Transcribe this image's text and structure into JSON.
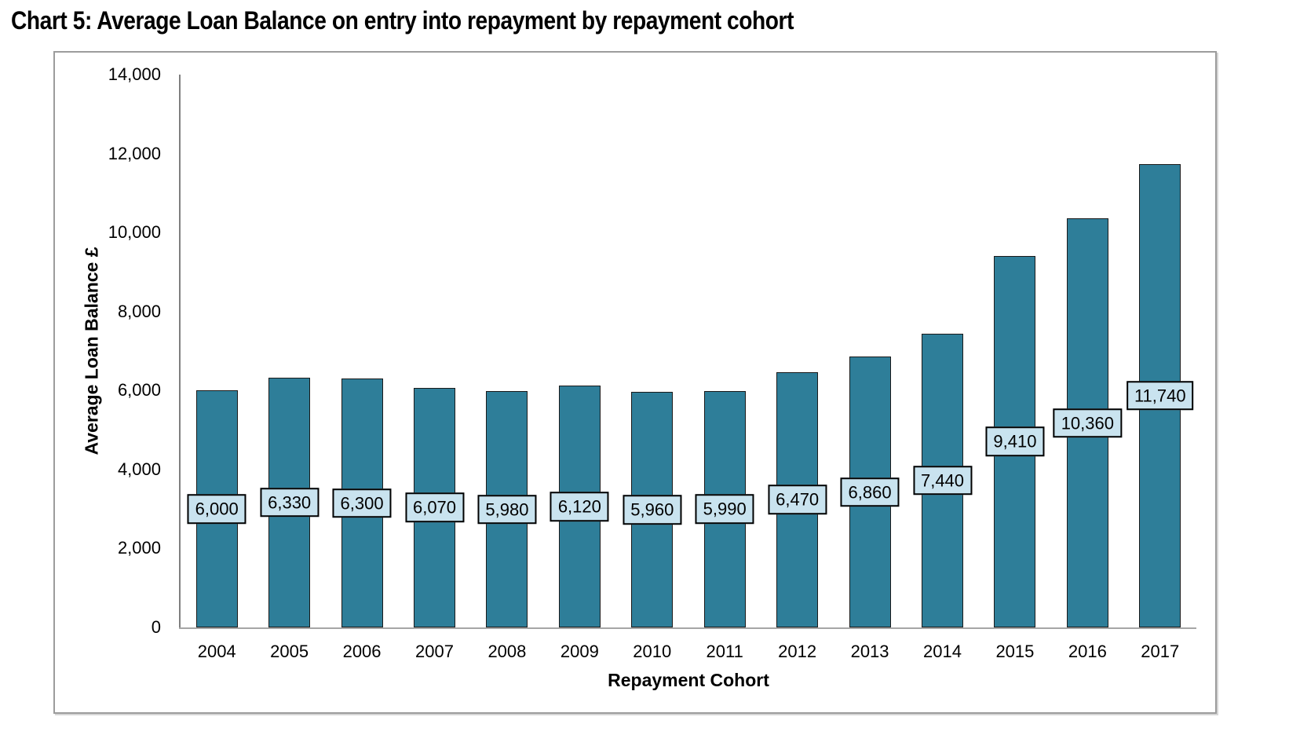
{
  "title": "Chart 5: Average Loan Balance on entry into repayment by repayment cohort",
  "chart_data": {
    "type": "bar",
    "title": "Chart 5: Average Loan Balance on entry into repayment by repayment cohort",
    "categories": [
      "2004",
      "2005",
      "2006",
      "2007",
      "2008",
      "2009",
      "2010",
      "2011",
      "2012",
      "2013",
      "2014",
      "2015",
      "2016",
      "2017"
    ],
    "values": [
      6000,
      6330,
      6300,
      6070,
      5980,
      6120,
      5960,
      5990,
      6470,
      6860,
      7440,
      9410,
      10360,
      11740
    ],
    "data_labels": [
      "6,000",
      "6,330",
      "6,300",
      "6,070",
      "5,980",
      "6,120",
      "5,960",
      "5,990",
      "6,470",
      "6,860",
      "7,440",
      "9,410",
      "10,360",
      "11,740"
    ],
    "xlabel": "Repayment Cohort",
    "ylabel": "Average Loan Balance £",
    "ylim": [
      0,
      14000
    ],
    "ytick_step": 2000,
    "ytick_labels": [
      "0",
      "2,000",
      "4,000",
      "6,000",
      "8,000",
      "10,000",
      "12,000",
      "14,000"
    ],
    "grid": false,
    "legend": "none",
    "data_label_position": "middle-of-bar",
    "colors": {
      "bar_fill": "#2E7E99",
      "bar_outline": "#1A1A1A",
      "label_box_fill": "#C9E3EF",
      "label_box_border": "#000000",
      "y_axis_line": "#7F7F7F",
      "x_axis_line": "#A6A6A6",
      "frame_border": "#9C9C9C",
      "text": "#000000"
    }
  }
}
